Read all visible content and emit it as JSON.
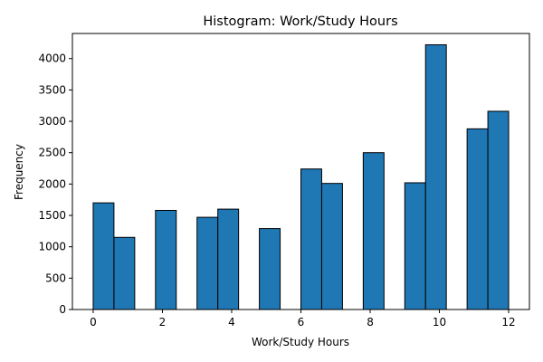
{
  "chart_data": {
    "type": "bar",
    "title": "Histogram: Work/Study Hours",
    "xlabel": "Work/Study Hours",
    "ylabel": "Frequency",
    "xlim": [
      -0.6,
      12.6
    ],
    "ylim": [
      0,
      4400
    ],
    "bin_width": 0.6,
    "xticks": [
      0,
      2,
      4,
      6,
      8,
      10,
      12
    ],
    "yticks": [
      0,
      500,
      1000,
      1500,
      2000,
      2500,
      3000,
      3500,
      4000
    ],
    "bar_color": "#1f77b4",
    "edge_color": "#000000",
    "grid": false,
    "bins": [
      {
        "x0": 0.0,
        "x1": 0.6,
        "value": 1700
      },
      {
        "x0": 0.6,
        "x1": 1.2,
        "value": 1150
      },
      {
        "x0": 1.2,
        "x1": 1.8,
        "value": 0
      },
      {
        "x0": 1.8,
        "x1": 2.4,
        "value": 1580
      },
      {
        "x0": 2.4,
        "x1": 3.0,
        "value": 0
      },
      {
        "x0": 3.0,
        "x1": 3.6,
        "value": 1470
      },
      {
        "x0": 3.6,
        "x1": 4.2,
        "value": 1600
      },
      {
        "x0": 4.2,
        "x1": 4.8,
        "value": 0
      },
      {
        "x0": 4.8,
        "x1": 5.4,
        "value": 1290
      },
      {
        "x0": 5.4,
        "x1": 6.0,
        "value": 0
      },
      {
        "x0": 6.0,
        "x1": 6.6,
        "value": 2240
      },
      {
        "x0": 6.6,
        "x1": 7.2,
        "value": 2010
      },
      {
        "x0": 7.2,
        "x1": 7.8,
        "value": 0
      },
      {
        "x0": 7.8,
        "x1": 8.4,
        "value": 2500
      },
      {
        "x0": 8.4,
        "x1": 9.0,
        "value": 0
      },
      {
        "x0": 9.0,
        "x1": 9.6,
        "value": 2020
      },
      {
        "x0": 9.6,
        "x1": 10.2,
        "value": 4220
      },
      {
        "x0": 10.2,
        "x1": 10.8,
        "value": 0
      },
      {
        "x0": 10.8,
        "x1": 11.4,
        "value": 2880
      },
      {
        "x0": 11.4,
        "x1": 12.0,
        "value": 3160
      }
    ]
  }
}
